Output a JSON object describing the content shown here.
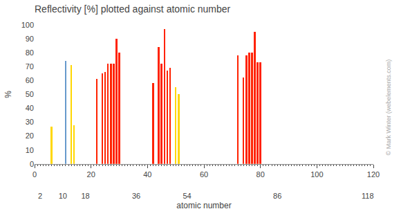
{
  "chart_data": {
    "type": "bar",
    "title": "Reflectivity [%] plotted against atomic number",
    "xlabel": "atomic number",
    "ylabel": "%",
    "x": [
      6,
      11,
      13,
      14,
      22,
      24,
      25,
      26,
      27,
      28,
      29,
      30,
      42,
      44,
      45,
      46,
      47,
      48,
      50,
      51,
      72,
      74,
      75,
      76,
      77,
      78,
      79,
      80
    ],
    "values": [
      27,
      74,
      71,
      28,
      61,
      65,
      66,
      72,
      72,
      72,
      90,
      80,
      58,
      84,
      72,
      97,
      67,
      69,
      55,
      50,
      78,
      62,
      78,
      80,
      80,
      95,
      73,
      73
    ],
    "colors": [
      "#ffd700",
      "#6699cc",
      "#ffd700",
      "#ffd700",
      "#ff2200",
      "#ff2200",
      "#ff2200",
      "#ff2200",
      "#ff2200",
      "#ff2200",
      "#ff2200",
      "#ff2200",
      "#ff2200",
      "#ff2200",
      "#ff2200",
      "#ff2200",
      "#ff2200",
      "#ff2200",
      "#ffd700",
      "#ffd700",
      "#ff2200",
      "#ff2200",
      "#ff2200",
      "#ff2200",
      "#ff2200",
      "#ff2200",
      "#ff2200",
      "#ff2200"
    ],
    "xlim": [
      0,
      120
    ],
    "xticks": [
      0,
      20,
      40,
      60,
      80,
      100,
      120
    ],
    "x2lim": [
      0,
      120
    ],
    "x2ticks": [
      2,
      10,
      18,
      36,
      54,
      86,
      118
    ],
    "ylim": [
      0,
      100
    ],
    "yticks": [
      0,
      10,
      20,
      30,
      40,
      50,
      60,
      70,
      80,
      90,
      100
    ],
    "grid": false,
    "annotations": [
      "© Mark Winter (webelements.com)"
    ]
  }
}
